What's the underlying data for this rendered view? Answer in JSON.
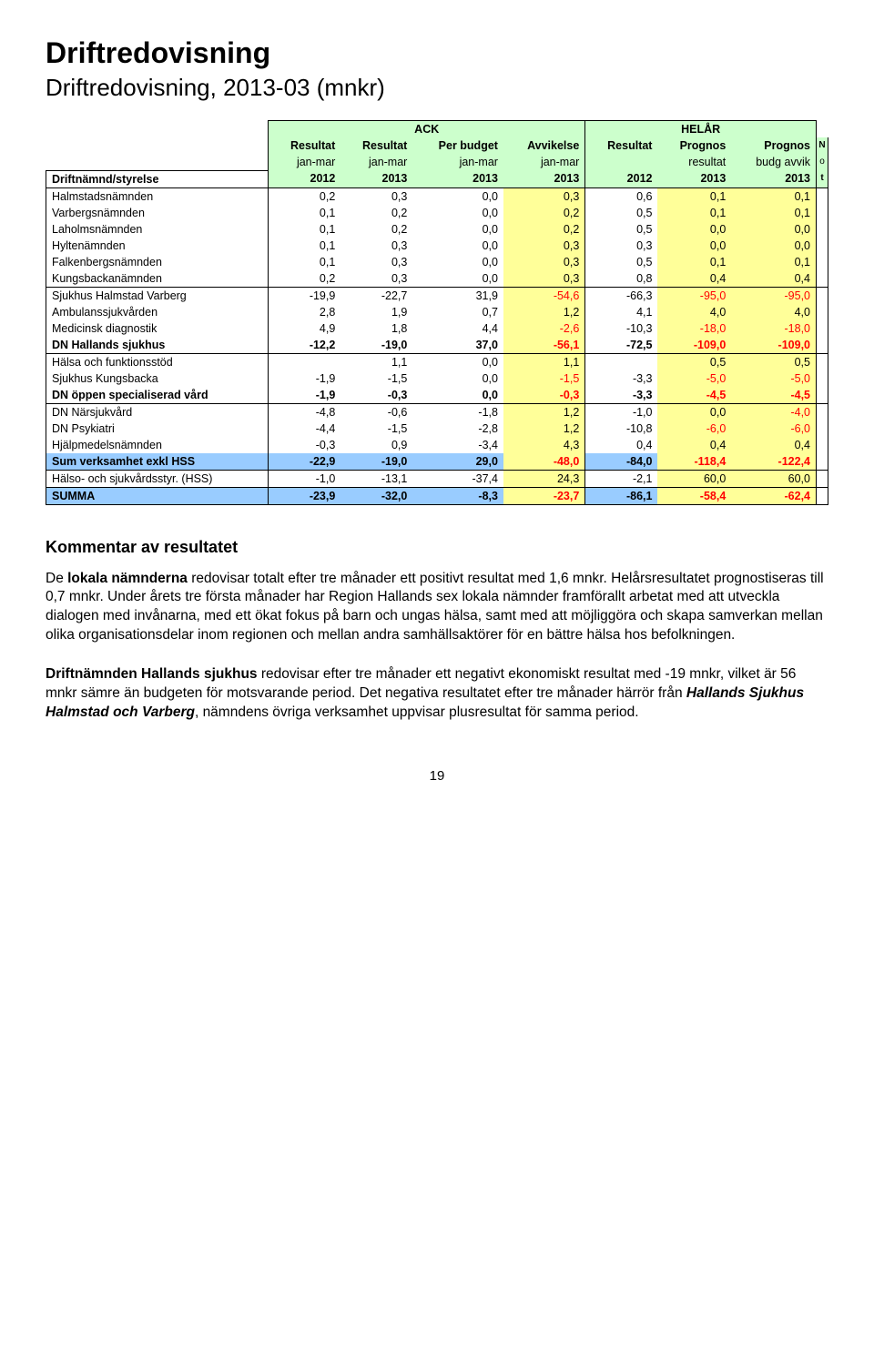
{
  "title": "Driftredovisning",
  "subtitle": "Driftredovisning, 2013-03 (mnkr)",
  "table": {
    "ack_label": "ACK",
    "helar_label": "HELÅR",
    "headers_r1": [
      "",
      "Resultat",
      "Resultat",
      "Per budget",
      "Avvikelse",
      "Resultat",
      "Prognos",
      "Prognos"
    ],
    "headers_r2": [
      "",
      "jan-mar",
      "jan-mar",
      "jan-mar",
      "jan-mar",
      "",
      "resultat",
      "budg avvik"
    ],
    "headers_r3": [
      "Driftnämnd/styrelse",
      "2012",
      "2013",
      "2013",
      "2013",
      "2012",
      "2013",
      "2013"
    ],
    "not1": "N",
    "not2": "o",
    "not3": "t",
    "group1": [
      {
        "label": "Halmstadsnämnden",
        "v": [
          "0,2",
          "0,3",
          "0,0",
          "0,3",
          "0,6",
          "0,1",
          "0,1"
        ]
      },
      {
        "label": "Varbergsnämnden",
        "v": [
          "0,1",
          "0,2",
          "0,0",
          "0,2",
          "0,5",
          "0,1",
          "0,1"
        ]
      },
      {
        "label": "Laholmsnämnden",
        "v": [
          "0,1",
          "0,2",
          "0,0",
          "0,2",
          "0,5",
          "0,0",
          "0,0"
        ]
      },
      {
        "label": "Hyltenämnden",
        "v": [
          "0,1",
          "0,3",
          "0,0",
          "0,3",
          "0,3",
          "0,0",
          "0,0"
        ]
      },
      {
        "label": "Falkenbergsnämnden",
        "v": [
          "0,1",
          "0,3",
          "0,0",
          "0,3",
          "0,5",
          "0,1",
          "0,1"
        ]
      },
      {
        "label": "Kungsbackanämnden",
        "v": [
          "0,2",
          "0,3",
          "0,0",
          "0,3",
          "0,8",
          "0,4",
          "0,4"
        ]
      }
    ],
    "group2": [
      {
        "label": "Sjukhus Halmstad Varberg",
        "v": [
          "-19,9",
          "-22,7",
          "31,9",
          "-54,6",
          "-66,3",
          "-95,0",
          "-95,0"
        ]
      },
      {
        "label": "Ambulanssjukvården",
        "v": [
          "2,8",
          "1,9",
          "0,7",
          "1,2",
          "4,1",
          "4,0",
          "4,0"
        ]
      },
      {
        "label": "Medicinsk diagnostik",
        "v": [
          "4,9",
          "1,8",
          "4,4",
          "-2,6",
          "-10,3",
          "-18,0",
          "-18,0"
        ]
      },
      {
        "label": "DN Hallands sjukhus",
        "v": [
          "-12,2",
          "-19,0",
          "37,0",
          "-56,1",
          "-72,5",
          "-109,0",
          "-109,0"
        ],
        "bold": true
      }
    ],
    "group3": [
      {
        "label": "Hälsa och funktionsstöd",
        "v": [
          "",
          "1,1",
          "0,0",
          "1,1",
          "",
          "0,5",
          "0,5"
        ]
      },
      {
        "label": "Sjukhus Kungsbacka",
        "v": [
          "-1,9",
          "-1,5",
          "0,0",
          "-1,5",
          "-3,3",
          "-5,0",
          "-5,0"
        ]
      },
      {
        "label": "DN öppen specialiserad vård",
        "v": [
          "-1,9",
          "-0,3",
          "0,0",
          "-0,3",
          "-3,3",
          "-4,5",
          "-4,5"
        ],
        "bold": true
      }
    ],
    "group4": [
      {
        "label": "DN Närsjukvård",
        "v": [
          "-4,8",
          "-0,6",
          "-1,8",
          "1,2",
          "-1,0",
          "0,0",
          "-4,0"
        ]
      },
      {
        "label": "DN Psykiatri",
        "v": [
          "-4,4",
          "-1,5",
          "-2,8",
          "1,2",
          "-10,8",
          "-6,0",
          "-6,0"
        ]
      },
      {
        "label": "Hjälpmedelsnämnden",
        "v": [
          "-0,3",
          "0,9",
          "-3,4",
          "4,3",
          "0,4",
          "0,4",
          "0,4"
        ]
      },
      {
        "label": "Sum verksamhet exkl HSS",
        "v": [
          "-22,9",
          "-19,0",
          "29,0",
          "-48,0",
          "-84,0",
          "-118,4",
          "-122,4"
        ],
        "bold": true,
        "blue": true
      }
    ],
    "group5": [
      {
        "label": "Hälso- och sjukvårdsstyr. (HSS)",
        "v": [
          "-1,0",
          "-13,1",
          "-37,4",
          "24,3",
          "-2,1",
          "60,0",
          "60,0"
        ]
      }
    ],
    "group6": [
      {
        "label": "SUMMA",
        "v": [
          "-23,9",
          "-32,0",
          "-8,3",
          "-23,7",
          "-86,1",
          "-58,4",
          "-62,4"
        ],
        "bold": true,
        "blue": true
      }
    ]
  },
  "comment_heading": "Kommentar av resultatet",
  "para1": "De lokala nämnderna redovisar totalt efter tre månader ett positivt resultat med 1,6 mnkr. Helårsresultatet prognostiseras till 0,7 mnkr. Under årets tre första månader har Region Hallands sex lokala nämnder framförallt arbetat med att utveckla dialogen med invånarna, med ett ökat fokus på barn och ungas hälsa, samt med att möjliggöra och skapa samverkan mellan olika organisationsdelar inom regionen och mellan andra samhällsaktörer för en bättre hälsa hos befolkningen.",
  "para1_bold": "lokala nämnderna",
  "para2": "Driftnämnden Hallands sjukhus redovisar efter tre månader ett negativt ekonomiskt resultat med -19 mnkr, vilket är 56 mnkr sämre än budgeten för motsvarande period. Det negativa resultatet efter tre månader härrör från Hallands Sjukhus Halmstad och Varberg, nämndens övriga verksamhet uppvisar plusresultat för samma period.",
  "page_number": "19",
  "colors": {
    "green": "#ccffcc",
    "yellow": "#ffff99",
    "blue": "#99ccff",
    "red": "#ff0000"
  }
}
